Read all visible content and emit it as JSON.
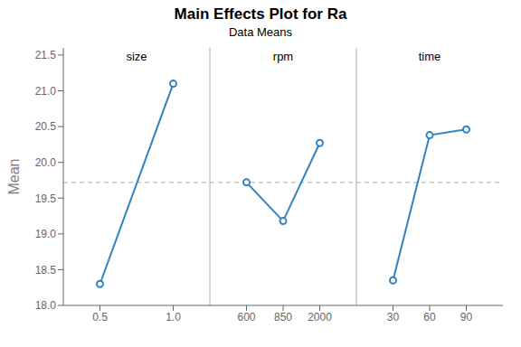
{
  "chart_data": {
    "type": "line",
    "title": "Main Effects Plot for Ra",
    "subtitle": "Data Means",
    "y_label": "Mean",
    "panels": [
      {
        "label": "size",
        "categories": [
          "0.5",
          "1.0"
        ],
        "values": [
          18.3,
          21.1
        ]
      },
      {
        "label": "rpm",
        "categories": [
          "600",
          "850",
          "2000"
        ],
        "values": [
          19.72,
          19.18,
          20.27
        ]
      },
      {
        "label": "time",
        "categories": [
          "30",
          "60",
          "90"
        ],
        "values": [
          18.35,
          20.38,
          20.46
        ]
      }
    ],
    "grand_mean": 19.72,
    "ylim": [
      18.0,
      21.6
    ],
    "yticks": [
      {
        "value": 18,
        "label": "18.0"
      },
      18.5,
      {
        "value": 19,
        "label": "19.0"
      },
      19.5,
      {
        "value": 20,
        "label": "20.0"
      },
      20.5,
      {
        "value": 21,
        "label": "21.0"
      },
      21.5
    ],
    "marker": "circle",
    "grid": false
  }
}
